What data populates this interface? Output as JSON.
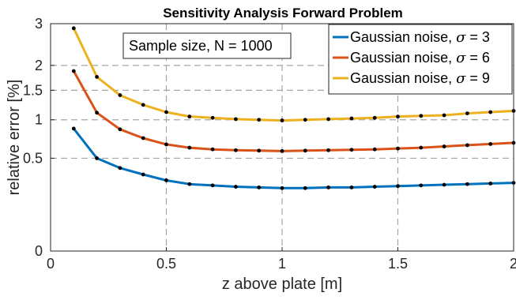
{
  "chart_data": {
    "type": "line",
    "title": "Sensitivity Analysis Forward Problem",
    "xlabel": "z above plate [m]",
    "ylabel": "relative error [%]",
    "xlim": [
      0,
      2
    ],
    "ylim": [
      0,
      3
    ],
    "y_scale": "sqrt",
    "grid": true,
    "legend_position": "top-right",
    "x_ticks": [
      0,
      0.5,
      1,
      1.5,
      2
    ],
    "x_tick_labels": [
      "0",
      "0.5",
      "1",
      "1.5",
      "2"
    ],
    "y_ticks": [
      0,
      0.5,
      1,
      1.5,
      2,
      3
    ],
    "y_tick_labels": [
      "0",
      "0.5",
      "1",
      "1.5",
      "2",
      "3"
    ],
    "annotation": "Sample size, N = 1000",
    "x": [
      0.1,
      0.2,
      0.3,
      0.4,
      0.5,
      0.6,
      0.7,
      0.8,
      0.9,
      1.0,
      1.1,
      1.2,
      1.3,
      1.4,
      1.5,
      1.6,
      1.7,
      1.8,
      1.9,
      2.0
    ],
    "series": [
      {
        "legend_prefix": "Gaussian noise, ",
        "legend_symbol": "σ",
        "legend_suffix": " = 3",
        "color": "#0072bd",
        "values": [
          0.87,
          0.5,
          0.4,
          0.34,
          0.29,
          0.26,
          0.25,
          0.24,
          0.235,
          0.23,
          0.23,
          0.235,
          0.235,
          0.24,
          0.245,
          0.25,
          0.255,
          0.26,
          0.265,
          0.27
        ]
      },
      {
        "legend_prefix": "Gaussian noise, ",
        "legend_symbol": "σ",
        "legend_suffix": " = 6",
        "color": "#d95319",
        "values": [
          1.88,
          1.11,
          0.86,
          0.74,
          0.66,
          0.62,
          0.6,
          0.59,
          0.585,
          0.58,
          0.585,
          0.59,
          0.595,
          0.6,
          0.61,
          0.62,
          0.635,
          0.65,
          0.665,
          0.68
        ]
      },
      {
        "legend_prefix": "Gaussian noise, ",
        "legend_symbol": "σ",
        "legend_suffix": " = 9",
        "color": "#edb120",
        "values": [
          2.88,
          1.76,
          1.41,
          1.24,
          1.12,
          1.05,
          1.03,
          1.01,
          1.0,
          0.99,
          1.0,
          1.01,
          1.02,
          1.03,
          1.05,
          1.06,
          1.07,
          1.1,
          1.12,
          1.14
        ]
      }
    ]
  }
}
